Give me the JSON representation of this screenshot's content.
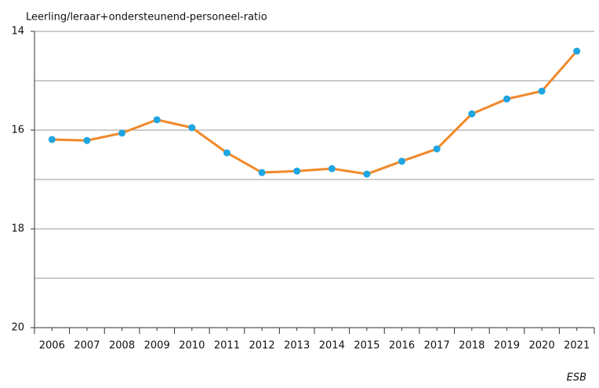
{
  "chart_data": {
    "type": "line",
    "title": "Leerling/leraar+ondersteunend-personeel-ratio",
    "source": "ESB",
    "categories": [
      "2006",
      "2007",
      "2008",
      "2009",
      "2010",
      "2011",
      "2012",
      "2013",
      "2014",
      "2015",
      "2016",
      "2017",
      "2018",
      "2019",
      "2020",
      "2021"
    ],
    "series": [
      {
        "color": "#f0892a",
        "marker_color": "#1ea5e2",
        "values": [
          16.19,
          16.21,
          16.06,
          15.79,
          15.95,
          16.46,
          16.86,
          16.83,
          16.78,
          16.89,
          16.63,
          16.38,
          15.67,
          15.37,
          15.21,
          14.4
        ]
      }
    ],
    "ylim": [
      14,
      20
    ],
    "y_inverted": true,
    "yticks": [
      14,
      16,
      18,
      20
    ],
    "ygrid": [
      14,
      15,
      16,
      17,
      18,
      19,
      20
    ],
    "grid": true
  }
}
